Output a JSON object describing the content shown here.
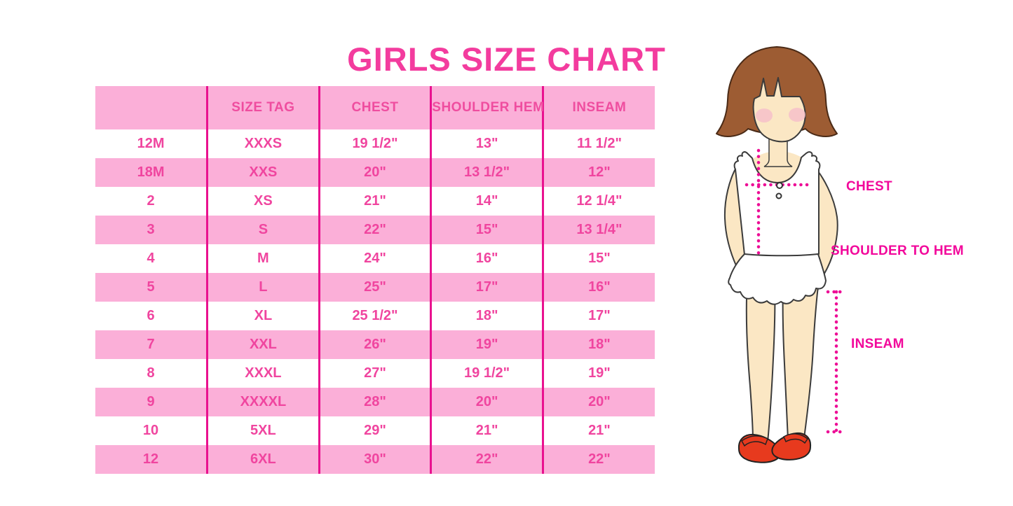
{
  "title": "GIRLS SIZE CHART",
  "chart_data": {
    "type": "table",
    "title": "GIRLS SIZE CHART",
    "columns": [
      "",
      "SIZE TAG",
      "CHEST",
      "SHOULDER HEM",
      "INSEAM"
    ],
    "rows": [
      [
        "12M",
        "XXXS",
        "19 1/2\"",
        "13\"",
        "11 1/2\""
      ],
      [
        "18M",
        "XXS",
        "20\"",
        "13 1/2\"",
        "12\""
      ],
      [
        "2",
        "XS",
        "21\"",
        "14\"",
        "12 1/4\""
      ],
      [
        "3",
        "S",
        "22\"",
        "15\"",
        "13 1/4\""
      ],
      [
        "4",
        "M",
        "24\"",
        "16\"",
        "15\""
      ],
      [
        "5",
        "L",
        "25\"",
        "17\"",
        "16\""
      ],
      [
        "6",
        "XL",
        "25 1/2\"",
        "18\"",
        "17\""
      ],
      [
        "7",
        "XXL",
        "26\"",
        "19\"",
        "18\""
      ],
      [
        "8",
        "XXXL",
        "27\"",
        "19 1/2\"",
        "19\""
      ],
      [
        "9",
        "XXXXL",
        "28\"",
        "20\"",
        "20\""
      ],
      [
        "10",
        "5XL",
        "29\"",
        "21\"",
        "21\""
      ],
      [
        "12",
        "6XL",
        "30\"",
        "22\"",
        "22\""
      ]
    ]
  },
  "diagram": {
    "chest_label": "CHEST",
    "shoulder_to_hem_label": "SHOULDER TO HEM",
    "inseam_label": "INSEAM"
  },
  "colors": {
    "title_pink": "#F33C9E",
    "row_band_pink": "#FBAFD8",
    "divider_magenta": "#E9118F",
    "table_text_pink": "#F0459F",
    "measure_magenta": "#ED0D96",
    "hair_brown": "#9D5C33",
    "skin": "#FBE7C4",
    "blush": "#F6BECB",
    "shoe_red": "#E73A1E"
  }
}
